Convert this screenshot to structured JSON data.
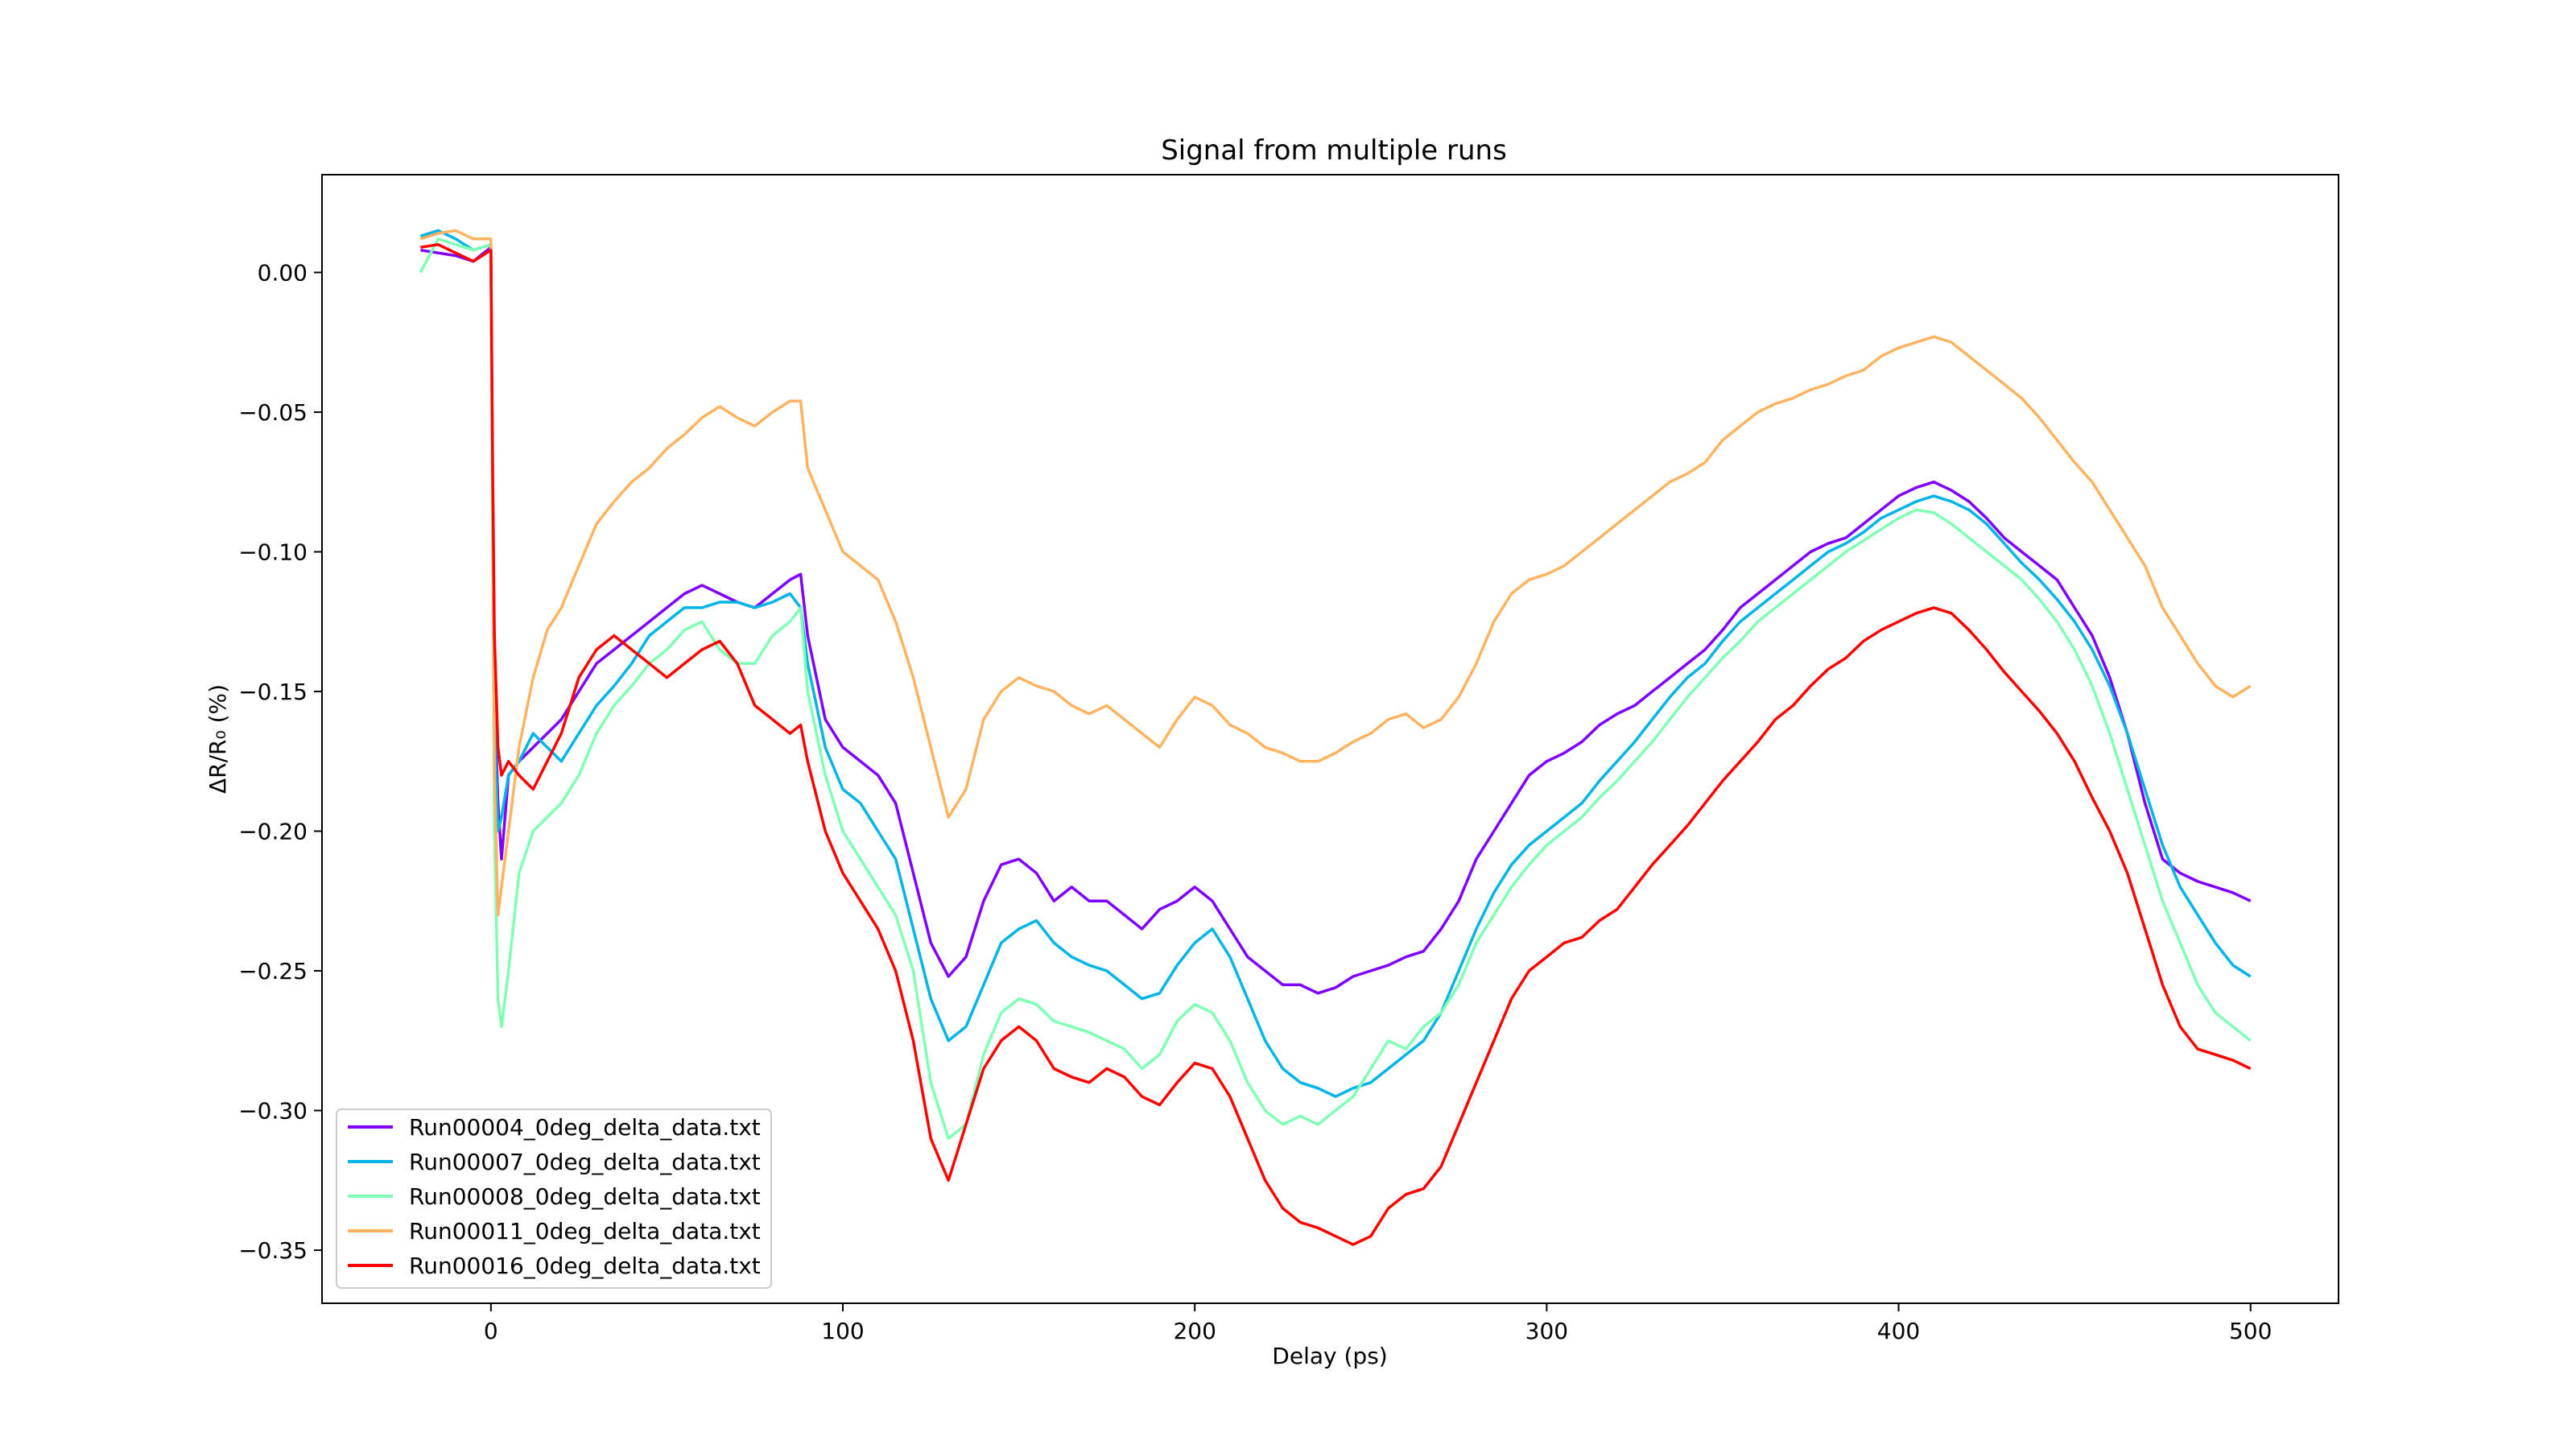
{
  "chart_data": {
    "type": "line",
    "title": "Signal from multiple runs",
    "xlabel": "Delay (ps)",
    "ylabel": "ΔR/R₀ (%)",
    "xlim": [
      -48,
      525
    ],
    "ylim": [
      -0.369,
      0.035
    ],
    "xticks": [
      0,
      100,
      200,
      300,
      400,
      500
    ],
    "xtick_labels": [
      "0",
      "100",
      "200",
      "300",
      "400",
      "500"
    ],
    "yticks": [
      0.0,
      -0.05,
      -0.1,
      -0.15,
      -0.2,
      -0.25,
      -0.3,
      -0.35
    ],
    "ytick_labels": [
      "0.00",
      "−0.05",
      "−0.10",
      "−0.15",
      "−0.20",
      "−0.25",
      "−0.30",
      "−0.35"
    ],
    "grid": false,
    "legend_position": "lower-left",
    "series": [
      {
        "name": "Run00004_0deg_delta_data.txt",
        "color": "#7f00ff",
        "x": [
          -20,
          -15,
          -10,
          -5,
          0,
          0.5,
          1,
          2,
          3,
          5,
          8,
          12,
          16,
          20,
          25,
          30,
          35,
          40,
          45,
          50,
          55,
          60,
          65,
          70,
          75,
          80,
          85,
          88,
          90,
          95,
          100,
          105,
          110,
          115,
          120,
          125,
          130,
          135,
          140,
          145,
          150,
          155,
          160,
          165,
          170,
          175,
          180,
          185,
          190,
          195,
          200,
          205,
          210,
          215,
          220,
          225,
          230,
          235,
          240,
          245,
          250,
          255,
          260,
          265,
          270,
          275,
          280,
          285,
          290,
          295,
          300,
          305,
          310,
          315,
          320,
          325,
          330,
          335,
          340,
          345,
          350,
          355,
          360,
          365,
          370,
          375,
          380,
          385,
          390,
          395,
          400,
          405,
          410,
          415,
          420,
          425,
          430,
          435,
          440,
          445,
          450,
          455,
          460,
          465,
          470,
          475,
          480,
          485,
          490,
          495,
          500
        ],
        "y": [
          0.008,
          0.007,
          0.006,
          0.004,
          0.009,
          -0.08,
          -0.15,
          -0.19,
          -0.21,
          -0.18,
          -0.175,
          -0.17,
          -0.165,
          -0.16,
          -0.15,
          -0.14,
          -0.135,
          -0.13,
          -0.125,
          -0.12,
          -0.115,
          -0.112,
          -0.115,
          -0.118,
          -0.12,
          -0.115,
          -0.11,
          -0.108,
          -0.13,
          -0.16,
          -0.17,
          -0.175,
          -0.18,
          -0.19,
          -0.215,
          -0.24,
          -0.252,
          -0.245,
          -0.225,
          -0.212,
          -0.21,
          -0.215,
          -0.225,
          -0.22,
          -0.225,
          -0.225,
          -0.23,
          -0.235,
          -0.228,
          -0.225,
          -0.22,
          -0.225,
          -0.235,
          -0.245,
          -0.25,
          -0.255,
          -0.255,
          -0.258,
          -0.256,
          -0.252,
          -0.25,
          -0.248,
          -0.245,
          -0.243,
          -0.235,
          -0.225,
          -0.21,
          -0.2,
          -0.19,
          -0.18,
          -0.175,
          -0.172,
          -0.168,
          -0.162,
          -0.158,
          -0.155,
          -0.15,
          -0.145,
          -0.14,
          -0.135,
          -0.128,
          -0.12,
          -0.115,
          -0.11,
          -0.105,
          -0.1,
          -0.097,
          -0.095,
          -0.09,
          -0.085,
          -0.08,
          -0.077,
          -0.075,
          -0.078,
          -0.082,
          -0.088,
          -0.095,
          -0.1,
          -0.105,
          -0.11,
          -0.12,
          -0.13,
          -0.145,
          -0.165,
          -0.19,
          -0.21,
          -0.215,
          -0.218,
          -0.22,
          -0.222,
          -0.225
        ]
      },
      {
        "name": "Run00007_0deg_delta_data.txt",
        "color": "#00b4e6",
        "x": [
          -20,
          -15,
          -10,
          -5,
          0,
          0.5,
          1,
          2,
          3,
          5,
          8,
          12,
          16,
          20,
          25,
          30,
          35,
          40,
          45,
          50,
          55,
          60,
          65,
          70,
          75,
          80,
          85,
          88,
          90,
          95,
          100,
          105,
          110,
          115,
          120,
          125,
          130,
          135,
          140,
          145,
          150,
          155,
          160,
          165,
          170,
          175,
          180,
          185,
          190,
          195,
          200,
          205,
          210,
          215,
          220,
          225,
          230,
          235,
          240,
          245,
          250,
          255,
          260,
          265,
          270,
          275,
          280,
          285,
          290,
          295,
          300,
          305,
          310,
          315,
          320,
          325,
          330,
          335,
          340,
          345,
          350,
          355,
          360,
          365,
          370,
          375,
          380,
          385,
          390,
          395,
          400,
          405,
          410,
          415,
          420,
          425,
          430,
          435,
          440,
          445,
          450,
          455,
          460,
          465,
          470,
          475,
          480,
          485,
          490,
          495,
          500
        ],
        "y": [
          0.013,
          0.015,
          0.012,
          0.008,
          0.01,
          -0.09,
          -0.16,
          -0.2,
          -0.195,
          -0.18,
          -0.175,
          -0.165,
          -0.17,
          -0.175,
          -0.165,
          -0.155,
          -0.148,
          -0.14,
          -0.13,
          -0.125,
          -0.12,
          -0.12,
          -0.118,
          -0.118,
          -0.12,
          -0.118,
          -0.115,
          -0.12,
          -0.14,
          -0.17,
          -0.185,
          -0.19,
          -0.2,
          -0.21,
          -0.235,
          -0.26,
          -0.275,
          -0.27,
          -0.255,
          -0.24,
          -0.235,
          -0.232,
          -0.24,
          -0.245,
          -0.248,
          -0.25,
          -0.255,
          -0.26,
          -0.258,
          -0.248,
          -0.24,
          -0.235,
          -0.245,
          -0.26,
          -0.275,
          -0.285,
          -0.29,
          -0.292,
          -0.295,
          -0.292,
          -0.29,
          -0.285,
          -0.28,
          -0.275,
          -0.265,
          -0.25,
          -0.235,
          -0.222,
          -0.212,
          -0.205,
          -0.2,
          -0.195,
          -0.19,
          -0.182,
          -0.175,
          -0.168,
          -0.16,
          -0.152,
          -0.145,
          -0.14,
          -0.132,
          -0.125,
          -0.12,
          -0.115,
          -0.11,
          -0.105,
          -0.1,
          -0.097,
          -0.093,
          -0.088,
          -0.085,
          -0.082,
          -0.08,
          -0.082,
          -0.085,
          -0.09,
          -0.097,
          -0.104,
          -0.11,
          -0.117,
          -0.125,
          -0.135,
          -0.148,
          -0.165,
          -0.185,
          -0.205,
          -0.22,
          -0.23,
          -0.24,
          -0.248,
          -0.252
        ]
      },
      {
        "name": "Run00008_0deg_delta_data.txt",
        "color": "#80ffb4",
        "x": [
          -20,
          -15,
          -10,
          -5,
          0,
          0.5,
          1,
          2,
          3,
          5,
          8,
          12,
          16,
          20,
          25,
          30,
          35,
          40,
          45,
          50,
          55,
          60,
          65,
          70,
          75,
          80,
          85,
          88,
          90,
          95,
          100,
          105,
          110,
          115,
          120,
          125,
          130,
          135,
          140,
          145,
          150,
          155,
          160,
          165,
          170,
          175,
          180,
          185,
          190,
          195,
          200,
          205,
          210,
          215,
          220,
          225,
          230,
          235,
          240,
          245,
          250,
          255,
          260,
          265,
          270,
          275,
          280,
          285,
          290,
          295,
          300,
          305,
          310,
          315,
          320,
          325,
          330,
          335,
          340,
          345,
          350,
          355,
          360,
          365,
          370,
          375,
          380,
          385,
          390,
          395,
          400,
          405,
          410,
          415,
          420,
          425,
          430,
          435,
          440,
          445,
          450,
          455,
          460,
          465,
          470,
          475,
          480,
          485,
          490,
          495,
          500
        ],
        "y": [
          0.0,
          0.012,
          0.01,
          0.008,
          0.01,
          -0.1,
          -0.2,
          -0.26,
          -0.27,
          -0.25,
          -0.215,
          -0.2,
          -0.195,
          -0.19,
          -0.18,
          -0.165,
          -0.155,
          -0.148,
          -0.14,
          -0.135,
          -0.128,
          -0.125,
          -0.135,
          -0.14,
          -0.14,
          -0.13,
          -0.125,
          -0.12,
          -0.15,
          -0.18,
          -0.2,
          -0.21,
          -0.22,
          -0.23,
          -0.25,
          -0.29,
          -0.31,
          -0.305,
          -0.28,
          -0.265,
          -0.26,
          -0.262,
          -0.268,
          -0.27,
          -0.272,
          -0.275,
          -0.278,
          -0.285,
          -0.28,
          -0.268,
          -0.262,
          -0.265,
          -0.275,
          -0.29,
          -0.3,
          -0.305,
          -0.302,
          -0.305,
          -0.3,
          -0.295,
          -0.285,
          -0.275,
          -0.278,
          -0.27,
          -0.265,
          -0.255,
          -0.24,
          -0.23,
          -0.22,
          -0.212,
          -0.205,
          -0.2,
          -0.195,
          -0.188,
          -0.182,
          -0.175,
          -0.168,
          -0.16,
          -0.152,
          -0.145,
          -0.138,
          -0.132,
          -0.125,
          -0.12,
          -0.115,
          -0.11,
          -0.105,
          -0.1,
          -0.096,
          -0.092,
          -0.088,
          -0.085,
          -0.086,
          -0.09,
          -0.095,
          -0.1,
          -0.105,
          -0.11,
          -0.117,
          -0.125,
          -0.135,
          -0.148,
          -0.165,
          -0.185,
          -0.205,
          -0.225,
          -0.24,
          -0.255,
          -0.265,
          -0.27,
          -0.275
        ]
      },
      {
        "name": "Run00011_0deg_delta_data.txt",
        "color": "#ffb360",
        "x": [
          -20,
          -15,
          -10,
          -5,
          0,
          0.5,
          1,
          2,
          3,
          5,
          8,
          12,
          16,
          20,
          25,
          30,
          35,
          40,
          45,
          50,
          55,
          60,
          65,
          70,
          75,
          80,
          85,
          88,
          90,
          95,
          100,
          105,
          110,
          115,
          120,
          125,
          130,
          135,
          140,
          145,
          150,
          155,
          160,
          165,
          170,
          175,
          180,
          185,
          190,
          195,
          200,
          205,
          210,
          215,
          220,
          225,
          230,
          235,
          240,
          245,
          250,
          255,
          260,
          265,
          270,
          275,
          280,
          285,
          290,
          295,
          300,
          305,
          310,
          315,
          320,
          325,
          330,
          335,
          340,
          345,
          350,
          355,
          360,
          365,
          370,
          375,
          380,
          385,
          390,
          395,
          400,
          405,
          410,
          415,
          420,
          425,
          430,
          435,
          440,
          445,
          450,
          455,
          460,
          465,
          470,
          475,
          480,
          485,
          490,
          495,
          500
        ],
        "y": [
          0.012,
          0.014,
          0.015,
          0.012,
          0.012,
          -0.08,
          -0.18,
          -0.23,
          -0.22,
          -0.2,
          -0.17,
          -0.145,
          -0.128,
          -0.12,
          -0.105,
          -0.09,
          -0.082,
          -0.075,
          -0.07,
          -0.063,
          -0.058,
          -0.052,
          -0.048,
          -0.052,
          -0.055,
          -0.05,
          -0.046,
          -0.046,
          -0.07,
          -0.085,
          -0.1,
          -0.105,
          -0.11,
          -0.125,
          -0.145,
          -0.17,
          -0.195,
          -0.185,
          -0.16,
          -0.15,
          -0.145,
          -0.148,
          -0.15,
          -0.155,
          -0.158,
          -0.155,
          -0.16,
          -0.165,
          -0.17,
          -0.16,
          -0.152,
          -0.155,
          -0.162,
          -0.165,
          -0.17,
          -0.172,
          -0.175,
          -0.175,
          -0.172,
          -0.168,
          -0.165,
          -0.16,
          -0.158,
          -0.163,
          -0.16,
          -0.152,
          -0.14,
          -0.125,
          -0.115,
          -0.11,
          -0.108,
          -0.105,
          -0.1,
          -0.095,
          -0.09,
          -0.085,
          -0.08,
          -0.075,
          -0.072,
          -0.068,
          -0.06,
          -0.055,
          -0.05,
          -0.047,
          -0.045,
          -0.042,
          -0.04,
          -0.037,
          -0.035,
          -0.03,
          -0.027,
          -0.025,
          -0.023,
          -0.025,
          -0.03,
          -0.035,
          -0.04,
          -0.045,
          -0.052,
          -0.06,
          -0.068,
          -0.075,
          -0.085,
          -0.095,
          -0.105,
          -0.12,
          -0.13,
          -0.14,
          -0.148,
          -0.152,
          -0.148
        ]
      },
      {
        "name": "Run00016_0deg_delta_data.txt",
        "color": "#ff0000",
        "x": [
          -20,
          -15,
          -10,
          -5,
          0,
          0.5,
          1,
          2,
          3,
          5,
          8,
          12,
          16,
          20,
          25,
          30,
          35,
          40,
          45,
          50,
          55,
          60,
          65,
          70,
          75,
          80,
          85,
          88,
          90,
          95,
          100,
          105,
          110,
          115,
          120,
          125,
          130,
          135,
          140,
          145,
          150,
          155,
          160,
          165,
          170,
          175,
          180,
          185,
          190,
          195,
          200,
          205,
          210,
          215,
          220,
          225,
          230,
          235,
          240,
          245,
          250,
          255,
          260,
          265,
          270,
          275,
          280,
          285,
          290,
          295,
          300,
          305,
          310,
          315,
          320,
          325,
          330,
          335,
          340,
          345,
          350,
          355,
          360,
          365,
          370,
          375,
          380,
          385,
          390,
          395,
          400,
          405,
          410,
          415,
          420,
          425,
          430,
          435,
          440,
          445,
          450,
          455,
          460,
          465,
          470,
          475,
          480,
          485,
          490,
          495,
          500
        ],
        "y": [
          0.009,
          0.01,
          0.007,
          0.004,
          0.008,
          -0.07,
          -0.13,
          -0.17,
          -0.18,
          -0.175,
          -0.18,
          -0.185,
          -0.175,
          -0.165,
          -0.145,
          -0.135,
          -0.13,
          -0.135,
          -0.14,
          -0.145,
          -0.14,
          -0.135,
          -0.132,
          -0.14,
          -0.155,
          -0.16,
          -0.165,
          -0.162,
          -0.175,
          -0.2,
          -0.215,
          -0.225,
          -0.235,
          -0.25,
          -0.275,
          -0.31,
          -0.325,
          -0.305,
          -0.285,
          -0.275,
          -0.27,
          -0.275,
          -0.285,
          -0.288,
          -0.29,
          -0.285,
          -0.288,
          -0.295,
          -0.298,
          -0.29,
          -0.283,
          -0.285,
          -0.295,
          -0.31,
          -0.325,
          -0.335,
          -0.34,
          -0.342,
          -0.345,
          -0.348,
          -0.345,
          -0.335,
          -0.33,
          -0.328,
          -0.32,
          -0.305,
          -0.29,
          -0.275,
          -0.26,
          -0.25,
          -0.245,
          -0.24,
          -0.238,
          -0.232,
          -0.228,
          -0.22,
          -0.212,
          -0.205,
          -0.198,
          -0.19,
          -0.182,
          -0.175,
          -0.168,
          -0.16,
          -0.155,
          -0.148,
          -0.142,
          -0.138,
          -0.132,
          -0.128,
          -0.125,
          -0.122,
          -0.12,
          -0.122,
          -0.128,
          -0.135,
          -0.143,
          -0.15,
          -0.157,
          -0.165,
          -0.175,
          -0.188,
          -0.2,
          -0.215,
          -0.235,
          -0.255,
          -0.27,
          -0.278,
          -0.28,
          -0.282,
          -0.285
        ]
      }
    ]
  }
}
